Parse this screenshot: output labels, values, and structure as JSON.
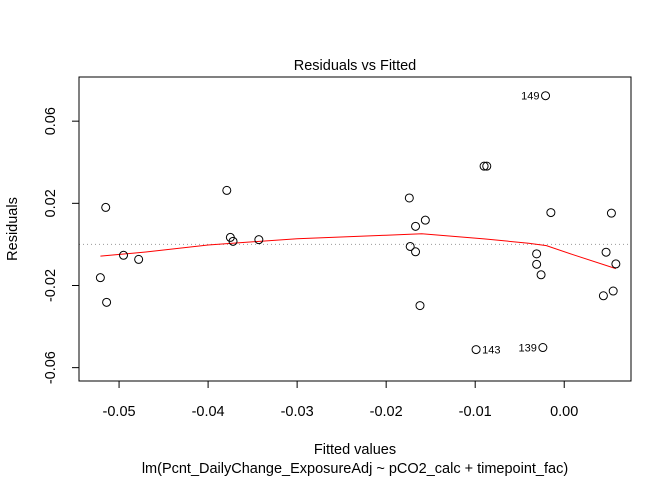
{
  "chart_data": {
    "type": "scatter",
    "title": "Residuals vs Fitted",
    "xlabel": "Fitted values",
    "sublabel": "lm(Pcnt_DailyChange_ExposureAdj ~ pCO2_calc + timepoint_fac)",
    "ylabel": "Residuals",
    "xlim": [
      -0.0545,
      0.0075
    ],
    "ylim": [
      -0.0665,
      0.0815
    ],
    "x_ticks": [
      -0.05,
      -0.04,
      -0.03,
      -0.02,
      -0.01,
      0.0
    ],
    "x_tick_labels": [
      "-0.05",
      "-0.04",
      "-0.03",
      "-0.02",
      "-0.01",
      "0.00"
    ],
    "y_ticks": [
      -0.06,
      -0.02,
      0.02,
      0.06
    ],
    "y_tick_labels": [
      "-0.06",
      "-0.02",
      "0.02",
      "0.06"
    ],
    "reference_line_y": 0,
    "points": [
      {
        "x": -0.0521,
        "y": -0.0162
      },
      {
        "x": -0.0515,
        "y": 0.018
      },
      {
        "x": -0.0514,
        "y": -0.0282
      },
      {
        "x": -0.0495,
        "y": -0.0053
      },
      {
        "x": -0.0478,
        "y": -0.0073
      },
      {
        "x": -0.0379,
        "y": 0.0263
      },
      {
        "x": -0.0375,
        "y": 0.0034
      },
      {
        "x": -0.0372,
        "y": 0.0015
      },
      {
        "x": -0.0343,
        "y": 0.0023
      },
      {
        "x": -0.0174,
        "y": 0.0226
      },
      {
        "x": -0.0173,
        "y": -0.001
      },
      {
        "x": -0.0167,
        "y": 0.0088
      },
      {
        "x": -0.0167,
        "y": -0.0036
      },
      {
        "x": -0.0162,
        "y": -0.0298
      },
      {
        "x": -0.0156,
        "y": 0.0118
      },
      {
        "x": -0.0099,
        "y": -0.0512
      },
      {
        "x": -0.009,
        "y": 0.0381
      },
      {
        "x": -0.0087,
        "y": 0.0381
      },
      {
        "x": -0.0031,
        "y": -0.0046
      },
      {
        "x": -0.0031,
        "y": -0.0097
      },
      {
        "x": -0.0026,
        "y": -0.0148
      },
      {
        "x": -0.0024,
        "y": -0.0502
      },
      {
        "x": -0.0021,
        "y": 0.0724
      },
      {
        "x": -0.0015,
        "y": 0.0155
      },
      {
        "x": 0.0044,
        "y": -0.025
      },
      {
        "x": 0.0047,
        "y": -0.0038
      },
      {
        "x": 0.0053,
        "y": 0.0152
      },
      {
        "x": 0.0055,
        "y": -0.0227
      },
      {
        "x": 0.0058,
        "y": -0.0095
      }
    ],
    "labels": [
      {
        "text": "149",
        "point": 22,
        "side": "left"
      },
      {
        "text": "143",
        "point": 15,
        "side": "right"
      },
      {
        "text": "139",
        "point": 21,
        "side": "left"
      }
    ],
    "smooth": {
      "name": "",
      "color": "#ff0000",
      "x": [
        -0.0521,
        -0.047,
        -0.04,
        -0.03,
        -0.02,
        -0.016,
        -0.009,
        -0.004,
        -0.002,
        0.001,
        0.0058
      ],
      "y": [
        -0.0057,
        -0.0037,
        -0.0003,
        0.0028,
        0.0045,
        0.0052,
        0.0027,
        0.0006,
        -0.0006,
        -0.005,
        -0.0118
      ]
    },
    "point_color": "#000000",
    "reference_color": "#999999",
    "grid": false
  }
}
